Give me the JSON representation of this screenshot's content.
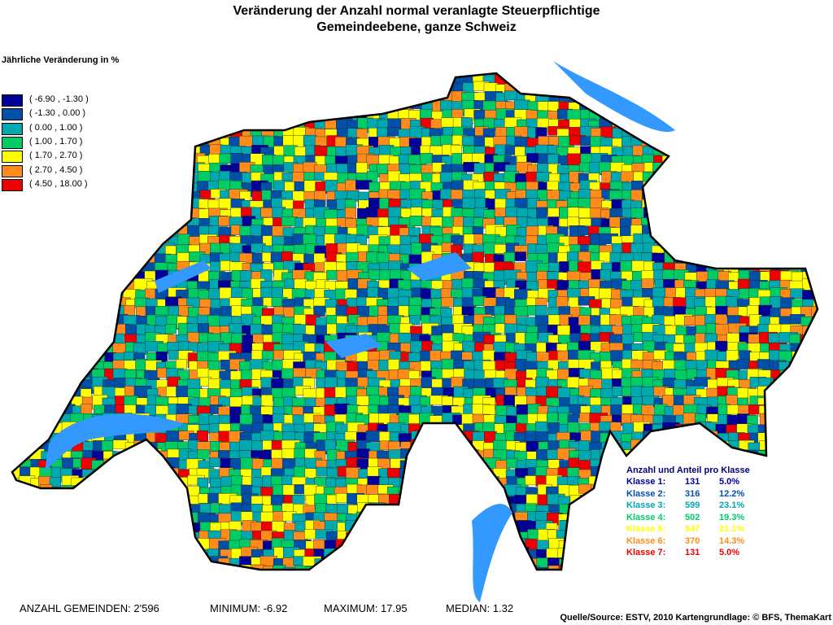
{
  "header": {
    "title": "Veränderung der Anzahl normal veranlagte Steuerpflichtige",
    "subtitle": "Gemeindeebene, ganze Schweiz"
  },
  "legend": {
    "title": "Jährliche Veränderung in %",
    "classes": [
      {
        "label": "( -6.90 , -1.30 )",
        "color": "#000099"
      },
      {
        "label": "( -1.30 , 0.00 )",
        "color": "#0050a8"
      },
      {
        "label": "( 0.00 , 1.00 )",
        "color": "#00a8b0"
      },
      {
        "label": "( 1.00 , 1.70 )",
        "color": "#00cc66"
      },
      {
        "label": "( 1.70 , 2.70 )",
        "color": "#ffff00"
      },
      {
        "label": "( 2.70 , 4.50 )",
        "color": "#ff8c1a"
      },
      {
        "label": "( 4.50 , 18.00 )",
        "color": "#ee0000"
      }
    ]
  },
  "class_stats": {
    "title": "Anzahl und Anteil pro Klasse",
    "rows": [
      {
        "label": "Klasse 1:",
        "count": "131",
        "share": "5.0%"
      },
      {
        "label": "Klasse 2:",
        "count": "316",
        "share": "12.2%"
      },
      {
        "label": "Klasse 3:",
        "count": "599",
        "share": "23.1%"
      },
      {
        "label": "Klasse 4:",
        "count": "502",
        "share": "19.3%"
      },
      {
        "label": "Klasse 5:",
        "count": "547",
        "share": "21.1%"
      },
      {
        "label": "Klasse 6:",
        "count": "370",
        "share": "14.3%"
      },
      {
        "label": "Klasse 7:",
        "count": "131",
        "share": "5.0%"
      }
    ]
  },
  "footer": {
    "count": "ANZAHL GEMEINDEN: 2'596",
    "minimum": "MINIMUM: -6.92",
    "maximum": "MAXIMUM: 17.95",
    "median": "MEDIAN: 1.32",
    "source": "Quelle/Source: ESTV, 2010 Kartengrundlage: © BFS, ThemaKart"
  }
}
